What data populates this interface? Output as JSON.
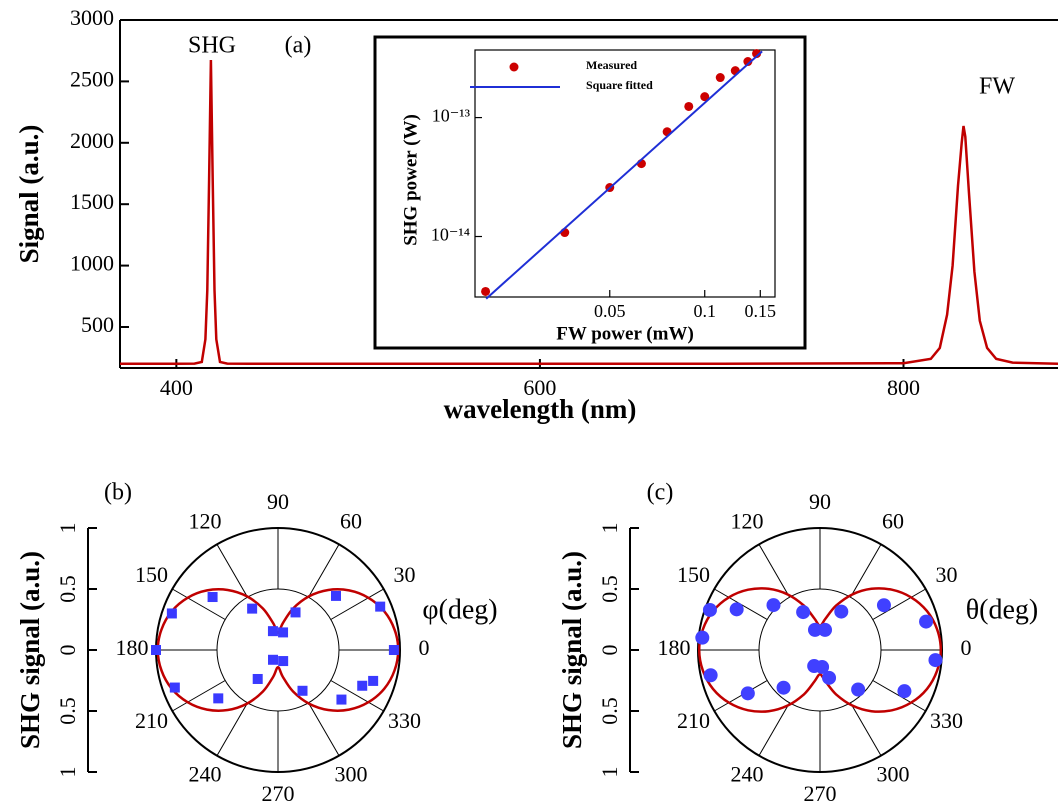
{
  "chart_data": [
    {
      "type": "line",
      "xlabel": "wavelength (nm)",
      "ylabel": "Signal (a.u.)",
      "annotations": [
        "SHG",
        "(a)",
        "FW"
      ],
      "xlim": [
        369,
        885
      ],
      "ylim": [
        166,
        3000
      ],
      "xticks": [
        400,
        600,
        800
      ],
      "yticks": [
        500,
        1000,
        1500,
        2000,
        2500,
        3000
      ],
      "color": "#c00000",
      "x": [
        369,
        400,
        410,
        414,
        416,
        417,
        418,
        419,
        420,
        421,
        422,
        424,
        428,
        440,
        500,
        600,
        700,
        800,
        815,
        820,
        824,
        827,
        830,
        832,
        833,
        834,
        836,
        839,
        842,
        846,
        851,
        860,
        885
      ],
      "values": [
        200,
        200,
        202,
        215,
        400,
        800,
        1700,
        2674,
        1700,
        800,
        400,
        215,
        202,
        200,
        200,
        200,
        200,
        205,
        240,
        330,
        600,
        1000,
        1650,
        2000,
        2137,
        2050,
        1600,
        950,
        550,
        330,
        240,
        210,
        200
      ]
    },
    {
      "type": "scatter",
      "xlabel": "FW power (mW)",
      "ylabel": "SHG power (W)",
      "xscale": "log",
      "yscale": "log",
      "xlim": [
        0.0187,
        0.167
      ],
      "ylim": [
        3.1e-15,
        3.7e-13
      ],
      "xticks": [
        0.05,
        0.1,
        0.15
      ],
      "yticks": [
        {
          "value": 1e-14,
          "label": "10⁻¹⁴"
        },
        {
          "value": 1e-13,
          "label": "10⁻¹³"
        }
      ],
      "series": [
        {
          "name": "Measured",
          "color": "#cc0000",
          "mode": "markers",
          "x": [
            0.0202,
            0.036,
            0.05,
            0.063,
            0.076,
            0.089,
            0.1,
            0.112,
            0.125,
            0.137,
            0.146
          ],
          "values": [
            3.45e-15,
            1.08e-14,
            2.58e-14,
            4.1e-14,
            7.6e-14,
            1.24e-13,
            1.5e-13,
            2.17e-13,
            2.48e-13,
            2.96e-13,
            3.45e-13
          ]
        },
        {
          "name": "Square fitted",
          "color": "#1f2fd6",
          "mode": "line",
          "x": [
            0.0203,
            0.152
          ],
          "values": [
            3e-15,
            3.6e-13
          ]
        }
      ]
    },
    {
      "type": "polar",
      "panel_label": "(b)",
      "theta_label": "φ(deg)",
      "rlabel": "SHG signal (a.u.)",
      "rlim": [
        0,
        1
      ],
      "rticks": [
        0,
        0.5,
        1
      ],
      "thetaticks": [
        0,
        30,
        60,
        90,
        120,
        150,
        180,
        210,
        240,
        270,
        300,
        330
      ],
      "series": [
        {
          "mode": "markers",
          "marker": "square",
          "color": "#3a3aff",
          "theta": [
            0,
            23,
            43,
            65,
            74,
            105,
            122,
            141,
            161,
            180,
            200,
            219,
            235,
            243,
            295,
            301,
            322,
            337,
            342
          ],
          "r": [
            0.95,
            0.91,
            0.65,
            0.34,
            0.15,
            0.16,
            0.4,
            0.69,
            0.92,
            1.0,
            0.9,
            0.63,
            0.29,
            0.09,
            0.1,
            0.39,
            0.66,
            0.75,
            0.82
          ]
        },
        {
          "mode": "line",
          "color": "#c00000",
          "theta": [
            0,
            10,
            20,
            30,
            40,
            50,
            60,
            70,
            80,
            90,
            100,
            110,
            120,
            130,
            140,
            150,
            160,
            170,
            180,
            190,
            200,
            210,
            220,
            230,
            240,
            250,
            260,
            270,
            280,
            290,
            300,
            310,
            320,
            330,
            340,
            350
          ],
          "r": [
            0.985,
            0.97,
            0.927,
            0.856,
            0.76,
            0.642,
            0.507,
            0.362,
            0.221,
            0.141,
            0.221,
            0.362,
            0.507,
            0.642,
            0.76,
            0.856,
            0.927,
            0.97,
            0.985,
            0.97,
            0.927,
            0.856,
            0.76,
            0.642,
            0.507,
            0.362,
            0.221,
            0.141,
            0.221,
            0.362,
            0.507,
            0.642,
            0.76,
            0.856,
            0.927,
            0.97
          ]
        }
      ]
    },
    {
      "type": "polar",
      "panel_label": "(c)",
      "theta_label": "θ(deg)",
      "rlabel": "SHG signal (a.u.)",
      "rlim": [
        0,
        1
      ],
      "rticks": [
        0,
        0.5,
        1
      ],
      "thetaticks": [
        0,
        30,
        60,
        90,
        120,
        150,
        180,
        210,
        240,
        270,
        300,
        330
      ],
      "series": [
        {
          "mode": "markers",
          "marker": "circle",
          "color": "#4040ff",
          "theta": [
            15,
            35,
            61,
            76,
            104,
            114,
            136,
            154,
            160,
            174,
            193,
            211,
            226,
            250,
            277,
            288,
            314,
            334,
            355
          ],
          "r": [
            0.9,
            0.64,
            0.36,
            0.17,
            0.17,
            0.34,
            0.53,
            0.76,
            0.96,
            0.97,
            0.92,
            0.69,
            0.43,
            0.14,
            0.14,
            0.24,
            0.45,
            0.77,
            0.95
          ]
        },
        {
          "mode": "line",
          "color": "#c00000",
          "theta": [
            0,
            10,
            20,
            30,
            40,
            50,
            60,
            70,
            80,
            90,
            100,
            110,
            120,
            130,
            140,
            150,
            160,
            170,
            180,
            190,
            200,
            210,
            220,
            230,
            240,
            250,
            260,
            270,
            280,
            290,
            300,
            310,
            320,
            330,
            340,
            350
          ],
          "r": [
            0.99,
            0.975,
            0.933,
            0.863,
            0.769,
            0.655,
            0.524,
            0.387,
            0.262,
            0.2,
            0.262,
            0.387,
            0.524,
            0.655,
            0.769,
            0.863,
            0.933,
            0.975,
            0.99,
            0.975,
            0.933,
            0.863,
            0.769,
            0.655,
            0.524,
            0.387,
            0.262,
            0.2,
            0.262,
            0.387,
            0.524,
            0.655,
            0.769,
            0.863,
            0.933,
            0.975
          ]
        }
      ]
    }
  ]
}
